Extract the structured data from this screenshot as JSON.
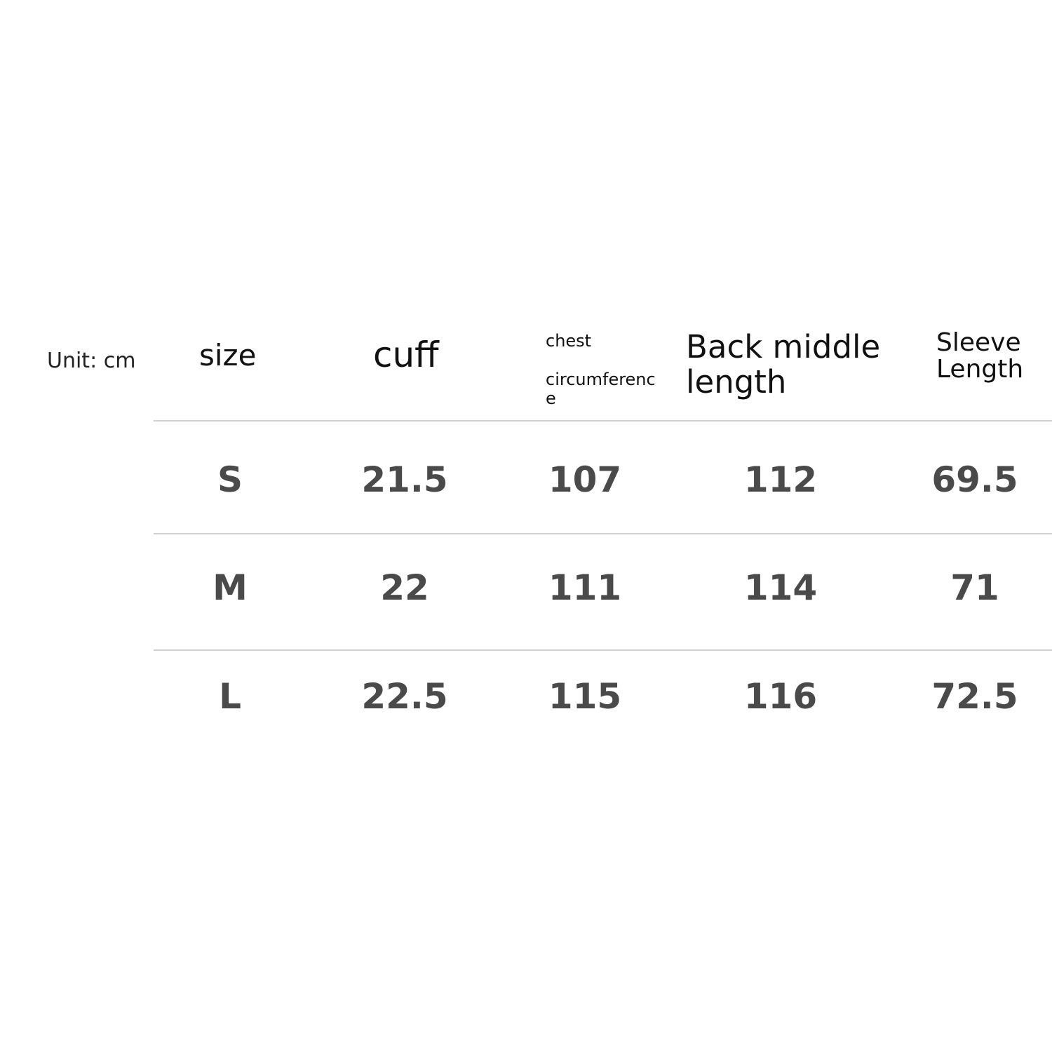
{
  "unit_label": "Unit: cm",
  "headers": {
    "size": "size",
    "cuff": "cuff",
    "chest_line1": "chest",
    "chest_line2": "circumference",
    "back_middle_length": "Back middle length",
    "sleeve_length": "Sleeve Length"
  },
  "rows": [
    {
      "size": "S",
      "cuff": "21.5",
      "chest": "107",
      "back": "112",
      "sleeve": "69.5"
    },
    {
      "size": "M",
      "cuff": "22",
      "chest": "111",
      "back": "114",
      "sleeve": "71"
    },
    {
      "size": "L",
      "cuff": "22.5",
      "chest": "115",
      "back": "116",
      "sleeve": "72.5"
    }
  ]
}
